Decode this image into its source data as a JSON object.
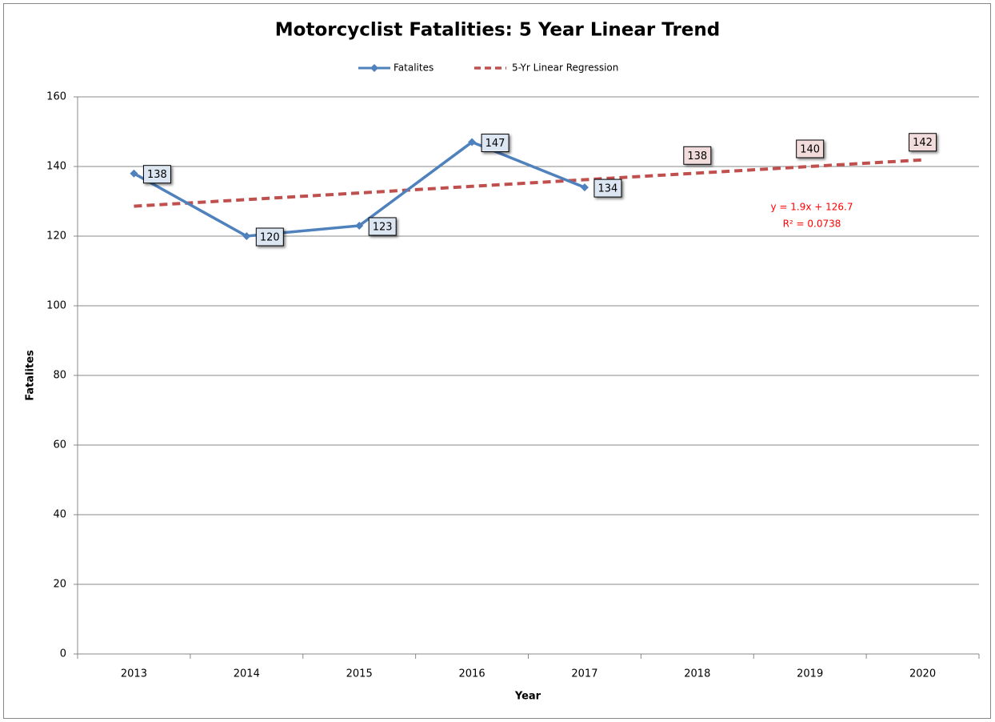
{
  "chart_data": {
    "type": "line",
    "title": "Motorcyclist Fatalities: 5 Year Linear Trend",
    "x_label": "Year",
    "y_label": "Fatalites",
    "categories": [
      "2013",
      "2014",
      "2015",
      "2016",
      "2017",
      "2018",
      "2019",
      "2020"
    ],
    "series": [
      {
        "name": "Fatalites",
        "color": "#4f81bd",
        "label_fill": "#dce6f2",
        "marker": "diamond",
        "line_style": "solid",
        "values": [
          138,
          120,
          123,
          147,
          134,
          null,
          null,
          null
        ]
      },
      {
        "name": "5-Yr Linear Regression",
        "color": "#c0504d",
        "label_fill": "#f2dcdb",
        "marker": "none",
        "line_style": "dashed",
        "values": [
          128.6,
          130.5,
          132.4,
          134.3,
          136.2,
          138.1,
          140.0,
          141.9
        ],
        "value_labels": [
          null,
          null,
          null,
          null,
          null,
          "138",
          "140",
          "142"
        ]
      }
    ],
    "annotations": [
      "y = 1.9x + 126.7",
      "R² = 0.0738"
    ],
    "annotation_color": "#ff0000",
    "ylim": [
      0,
      160
    ],
    "yticks": [
      0,
      20,
      40,
      60,
      80,
      100,
      120,
      140,
      160
    ],
    "grid": true,
    "legend": "top"
  }
}
